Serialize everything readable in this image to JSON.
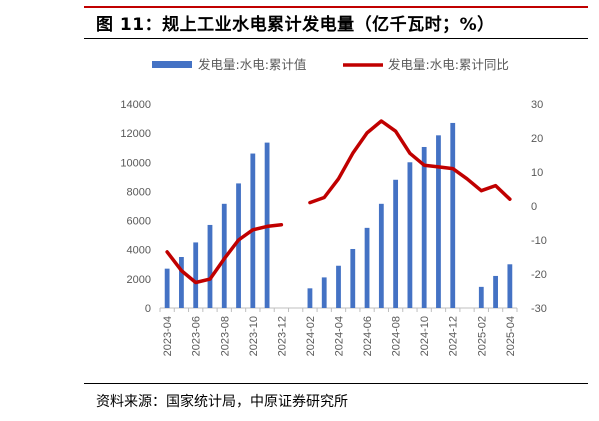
{
  "header": {
    "title": "图 11：规上工业水电累计发电量（亿千瓦时；%）"
  },
  "footer": {
    "source": "资料来源：国家统计局，中原证券研究所"
  },
  "colors": {
    "bar": "#4472c4",
    "line": "#c00000",
    "axis": "#bfbfbf",
    "tick_text": "#595959"
  },
  "chart_data": {
    "type": "bar",
    "legend_position": "top",
    "grid": false,
    "categories": [
      "2023-04",
      "2023-05",
      "2023-06",
      "2023-07",
      "2023-08",
      "2023-09",
      "2023-10",
      "2023-11",
      "2023-12",
      "2024-01",
      "2024-02",
      "2024-03",
      "2024-04",
      "2024-05",
      "2024-06",
      "2024-07",
      "2024-08",
      "2024-09",
      "2024-10",
      "2024-11",
      "2024-12",
      "2025-01",
      "2025-02",
      "2025-03",
      "2025-04"
    ],
    "x_tick_labels": [
      "2023-04",
      "2023-06",
      "2023-08",
      "2023-10",
      "2023-12",
      "2024-02",
      "2024-04",
      "2024-06",
      "2024-08",
      "2024-10",
      "2024-12",
      "2025-02",
      "2025-04"
    ],
    "x_tick_indices": [
      0,
      2,
      4,
      6,
      8,
      10,
      12,
      14,
      16,
      18,
      20,
      22,
      24
    ],
    "series": [
      {
        "name": "发电量:水电:累计值",
        "type": "bar",
        "axis": "left",
        "values": [
          2700,
          3500,
          4500,
          5700,
          7150,
          8550,
          10600,
          11350,
          0,
          null,
          1350,
          2100,
          2900,
          4050,
          5500,
          7150,
          8800,
          10000,
          11050,
          11850,
          12700,
          null,
          1450,
          2200,
          3000
        ]
      },
      {
        "name": "发电量:水电:累计同比",
        "type": "line",
        "axis": "right",
        "values": [
          -13.5,
          -19,
          -22.5,
          -21.5,
          -15.5,
          -10,
          -7,
          -6,
          -5.5,
          null,
          1,
          2.5,
          8,
          15.5,
          21.5,
          25,
          22,
          15.5,
          12,
          11.5,
          11,
          8,
          4.5,
          6,
          2
        ]
      }
    ],
    "y_left": {
      "min": 0,
      "max": 14000,
      "ticks": [
        0,
        2000,
        4000,
        6000,
        8000,
        10000,
        12000,
        14000
      ]
    },
    "y_right": {
      "min": -30,
      "max": 30,
      "ticks": [
        -30,
        -20,
        -10,
        0,
        10,
        20,
        30
      ]
    }
  }
}
